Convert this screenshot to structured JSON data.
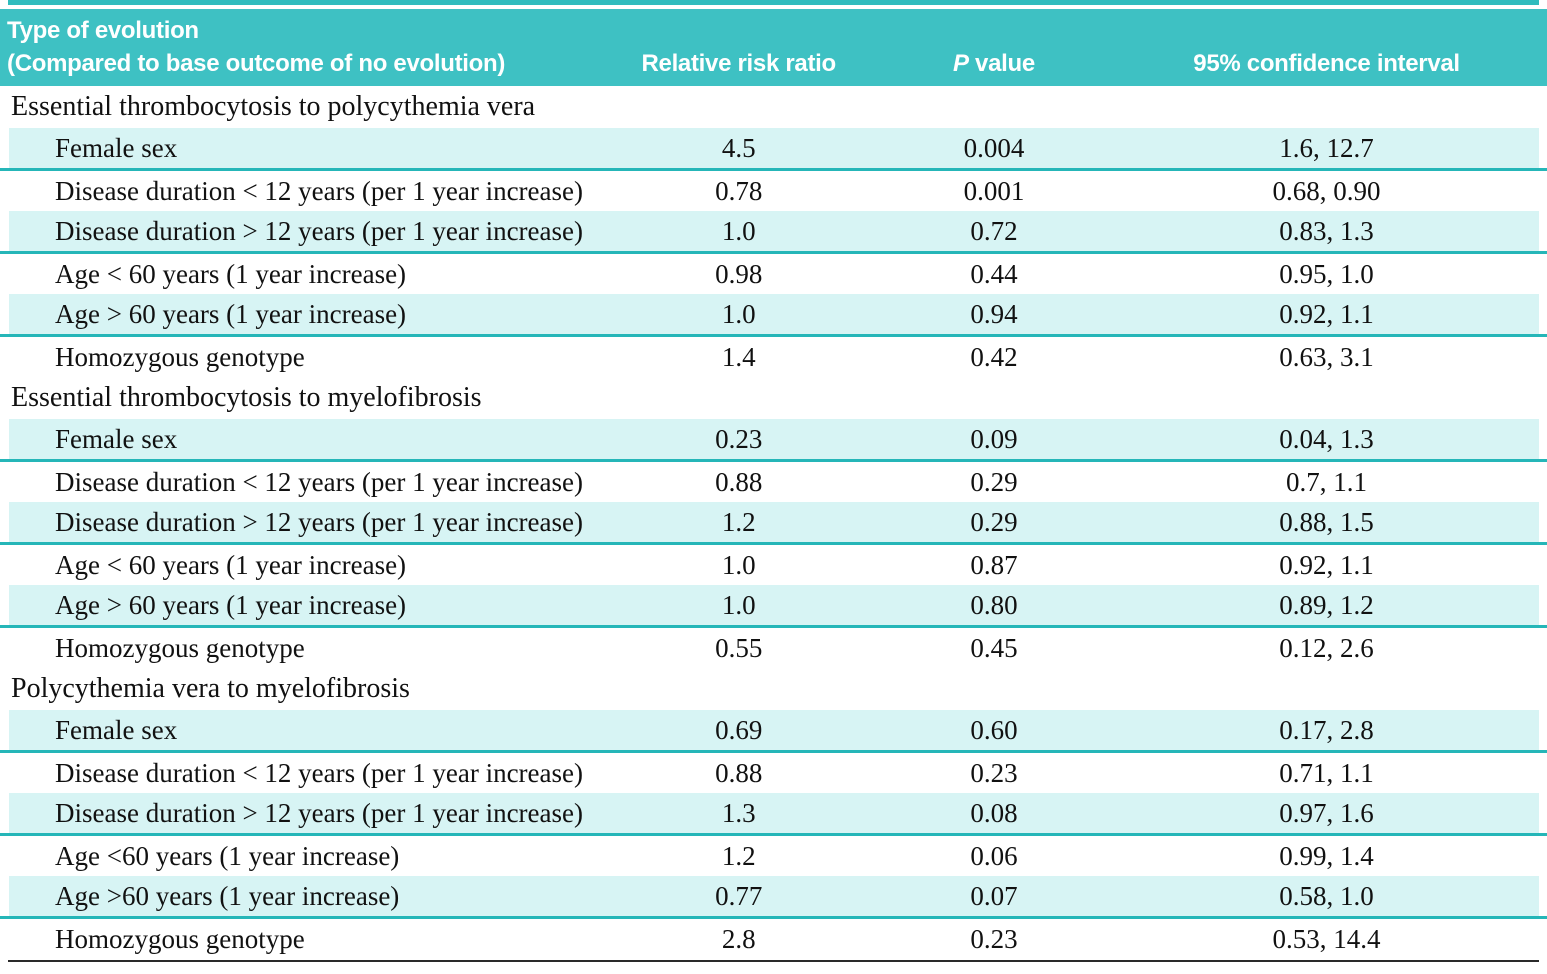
{
  "colors": {
    "header_teal": "#3ec1c3",
    "row_highlight_cyan": "#d7f4f4",
    "row_underline_teal": "#25b6b8",
    "top_strip_teal": "#2fbcbe",
    "bottom_rule_black": "#2a2a2a",
    "header_text": "#ffffff",
    "body_text": "#111111"
  },
  "header": {
    "label_line1": "Type of evolution",
    "label_line2": "(Compared to base outcome of no evolution)",
    "col_rrr": "Relative risk ratio",
    "col_p_italic": "P",
    "col_p_rest": " value",
    "col_ci": "95% confidence interval"
  },
  "table": {
    "sections": [
      {
        "title": "Essential thrombocytosis to polycythemia vera",
        "rows": [
          {
            "label": "Female sex",
            "rrr": "4.5",
            "p": "0.004",
            "ci": "1.6, 12.7",
            "highlight": true
          },
          {
            "label": "Disease duration < 12 years (per 1 year increase)",
            "rrr": "0.78",
            "p": "0.001",
            "ci": "0.68, 0.90",
            "highlight": false
          },
          {
            "label": "Disease duration > 12 years (per 1 year increase)",
            "rrr": "1.0",
            "p": "0.72",
            "ci": "0.83, 1.3",
            "highlight": true
          },
          {
            "label": "Age < 60 years (1 year increase)",
            "rrr": "0.98",
            "p": "0.44",
            "ci": "0.95, 1.0",
            "highlight": false
          },
          {
            "label": "Age > 60 years (1 year increase)",
            "rrr": "1.0",
            "p": "0.94",
            "ci": "0.92, 1.1",
            "highlight": true
          },
          {
            "label": "Homozygous genotype",
            "rrr": "1.4",
            "p": "0.42",
            "ci": "0.63, 3.1",
            "highlight": false
          }
        ]
      },
      {
        "title": "Essential thrombocytosis to myelofibrosis",
        "rows": [
          {
            "label": "Female sex",
            "rrr": "0.23",
            "p": "0.09",
            "ci": "0.04, 1.3",
            "highlight": true
          },
          {
            "label": "Disease duration < 12 years (per 1 year increase)",
            "rrr": "0.88",
            "p": "0.29",
            "ci": "0.7, 1.1",
            "highlight": false
          },
          {
            "label": "Disease duration > 12 years (per 1 year increase)",
            "rrr": "1.2",
            "p": "0.29",
            "ci": "0.88, 1.5",
            "highlight": true
          },
          {
            "label": "Age < 60 years (1 year increase)",
            "rrr": "1.0",
            "p": "0.87",
            "ci": "0.92, 1.1",
            "highlight": false
          },
          {
            "label": "Age > 60 years (1 year increase)",
            "rrr": "1.0",
            "p": "0.80",
            "ci": "0.89, 1.2",
            "highlight": true
          },
          {
            "label": "Homozygous genotype",
            "rrr": "0.55",
            "p": "0.45",
            "ci": "0.12, 2.6",
            "highlight": false
          }
        ]
      },
      {
        "title": "Polycythemia vera to myelofibrosis",
        "rows": [
          {
            "label": "Female sex",
            "rrr": "0.69",
            "p": "0.60",
            "ci": "0.17, 2.8",
            "highlight": true
          },
          {
            "label": "Disease duration < 12 years (per 1 year increase)",
            "rrr": "0.88",
            "p": "0.23",
            "ci": "0.71, 1.1",
            "highlight": false
          },
          {
            "label": "Disease duration > 12 years (per 1 year increase)",
            "rrr": "1.3",
            "p": "0.08",
            "ci": "0.97, 1.6",
            "highlight": true
          },
          {
            "label": "Age <60 years (1 year increase)",
            "rrr": "1.2",
            "p": "0.06",
            "ci": "0.99, 1.4",
            "highlight": false
          },
          {
            "label": "Age >60 years (1 year increase)",
            "rrr": "0.77",
            "p": "0.07",
            "ci": "0.58, 1.0",
            "highlight": true
          },
          {
            "label": "Homozygous genotype",
            "rrr": "2.8",
            "p": "0.23",
            "ci": "0.53, 14.4",
            "highlight": false
          }
        ]
      }
    ]
  }
}
